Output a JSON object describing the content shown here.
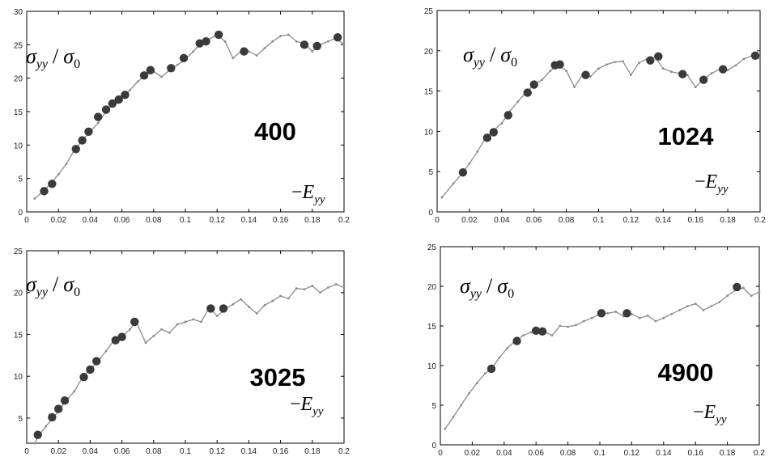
{
  "chart_data": [
    {
      "type": "line",
      "title": "400",
      "ylabel": {
        "num": "σ",
        "num_sub": "yy",
        "slash": "/",
        "den": "σ",
        "den_sub": "0"
      },
      "xlabel": {
        "prefix": "−",
        "main": "E",
        "sub": "yy"
      },
      "xlim": [
        0,
        0.2
      ],
      "ylim": [
        0,
        30
      ],
      "xticks": [
        0,
        0.02,
        0.04,
        0.06,
        0.08,
        0.1,
        0.12,
        0.14,
        0.16,
        0.18,
        0.2
      ],
      "xtick_labels": [
        "0",
        "0.02",
        "0.04",
        "0.06",
        "0.08",
        "0.1",
        "0.12",
        "0.14",
        "0.16",
        "0.18",
        "0.2"
      ],
      "yticks": [
        0,
        5,
        10,
        15,
        20,
        25,
        30
      ],
      "ytick_labels": [
        "0",
        "5",
        "10",
        "15",
        "20",
        "25",
        "30"
      ],
      "grid": false,
      "series": [
        {
          "x": [
            0.005,
            0.01,
            0.015,
            0.02,
            0.025,
            0.03,
            0.035,
            0.04,
            0.045,
            0.05,
            0.055,
            0.06,
            0.065,
            0.07,
            0.075,
            0.08,
            0.085,
            0.09,
            0.095,
            0.1,
            0.105,
            0.11,
            0.115,
            0.12,
            0.125,
            0.13,
            0.135,
            0.14,
            0.145,
            0.15,
            0.155,
            0.16,
            0.165,
            0.17,
            0.175,
            0.18,
            0.185,
            0.19,
            0.195,
            0.2
          ],
          "y": [
            2.0,
            3.0,
            4.2,
            5.6,
            7.2,
            9.2,
            10.7,
            12.0,
            13.3,
            15.0,
            16.2,
            17.0,
            18.2,
            19.5,
            20.5,
            21.0,
            20.2,
            21.2,
            22.0,
            22.8,
            24.0,
            25.2,
            25.8,
            26.5,
            25.5,
            23.0,
            24.0,
            24.0,
            23.4,
            24.5,
            25.5,
            26.3,
            26.5,
            25.5,
            25.2,
            24.0,
            25.0,
            25.5,
            26.0,
            25.0
          ]
        }
      ],
      "markers": [
        {
          "x": 0.011,
          "y": 3.1
        },
        {
          "x": 0.016,
          "y": 4.2
        },
        {
          "x": 0.031,
          "y": 9.4
        },
        {
          "x": 0.035,
          "y": 10.7
        },
        {
          "x": 0.039,
          "y": 12.0
        },
        {
          "x": 0.045,
          "y": 14.2
        },
        {
          "x": 0.05,
          "y": 15.3
        },
        {
          "x": 0.054,
          "y": 16.2
        },
        {
          "x": 0.058,
          "y": 16.8
        },
        {
          "x": 0.062,
          "y": 17.5
        },
        {
          "x": 0.074,
          "y": 20.4
        },
        {
          "x": 0.078,
          "y": 21.2
        },
        {
          "x": 0.091,
          "y": 21.5
        },
        {
          "x": 0.099,
          "y": 23.0
        },
        {
          "x": 0.109,
          "y": 25.2
        },
        {
          "x": 0.113,
          "y": 25.5
        },
        {
          "x": 0.121,
          "y": 26.5
        },
        {
          "x": 0.137,
          "y": 24.0
        },
        {
          "x": 0.175,
          "y": 25.0
        },
        {
          "x": 0.183,
          "y": 24.8
        },
        {
          "x": 0.196,
          "y": 26.1
        }
      ]
    },
    {
      "type": "line",
      "title": "1024",
      "ylabel": {
        "num": "σ",
        "num_sub": "yy",
        "slash": "/",
        "den": "σ",
        "den_sub": "0"
      },
      "xlabel": {
        "prefix": "−",
        "main": "E",
        "sub": "yy"
      },
      "xlim": [
        0,
        0.2
      ],
      "ylim": [
        0,
        25
      ],
      "xticks": [
        0,
        0.02,
        0.04,
        0.06,
        0.08,
        0.1,
        0.12,
        0.14,
        0.16,
        0.18,
        0.2
      ],
      "xtick_labels": [
        "0",
        "0.02",
        "0.04",
        "0.06",
        "0.08",
        "0.1",
        "0.12",
        "0.14",
        "0.16",
        "0.18",
        "0.2"
      ],
      "yticks": [
        0,
        5,
        10,
        15,
        20,
        25
      ],
      "ytick_labels": [
        "0",
        "5",
        "10",
        "15",
        "20",
        "25"
      ],
      "grid": false,
      "series": [
        {
          "x": [
            0.003,
            0.01,
            0.016,
            0.02,
            0.025,
            0.03,
            0.034,
            0.04,
            0.045,
            0.05,
            0.055,
            0.06,
            0.065,
            0.07,
            0.075,
            0.08,
            0.085,
            0.09,
            0.095,
            0.1,
            0.105,
            0.11,
            0.115,
            0.12,
            0.125,
            0.13,
            0.135,
            0.14,
            0.145,
            0.15,
            0.155,
            0.16,
            0.165,
            0.17,
            0.175,
            0.18,
            0.185,
            0.19,
            0.195,
            0.2
          ],
          "y": [
            1.8,
            3.5,
            4.9,
            6.0,
            7.5,
            9.2,
            9.9,
            11.0,
            12.5,
            13.7,
            14.8,
            15.8,
            16.4,
            17.5,
            18.3,
            17.5,
            15.5,
            17.0,
            16.8,
            17.8,
            18.3,
            18.6,
            18.7,
            17.0,
            18.5,
            19.0,
            19.2,
            17.8,
            17.4,
            17.2,
            17.0,
            15.5,
            16.5,
            17.2,
            17.7,
            17.6,
            18.2,
            19.0,
            19.4,
            19.0
          ]
        }
      ],
      "markers": [
        {
          "x": 0.016,
          "y": 4.9
        },
        {
          "x": 0.031,
          "y": 9.2
        },
        {
          "x": 0.035,
          "y": 9.9
        },
        {
          "x": 0.044,
          "y": 12.0
        },
        {
          "x": 0.056,
          "y": 14.8
        },
        {
          "x": 0.06,
          "y": 15.8
        },
        {
          "x": 0.073,
          "y": 18.2
        },
        {
          "x": 0.076,
          "y": 18.3
        },
        {
          "x": 0.092,
          "y": 17.0
        },
        {
          "x": 0.132,
          "y": 18.8
        },
        {
          "x": 0.137,
          "y": 19.3
        },
        {
          "x": 0.152,
          "y": 17.1
        },
        {
          "x": 0.165,
          "y": 16.4
        },
        {
          "x": 0.177,
          "y": 17.7
        },
        {
          "x": 0.197,
          "y": 19.4
        }
      ]
    },
    {
      "type": "line",
      "title": "3025",
      "ylabel": {
        "num": "σ",
        "num_sub": "yy",
        "slash": "/",
        "den": "σ",
        "den_sub": "0"
      },
      "xlabel": {
        "prefix": "−",
        "main": "E",
        "sub": "yy"
      },
      "xlim": [
        0,
        0.2
      ],
      "ylim": [
        2,
        25
      ],
      "xticks": [
        0,
        0.02,
        0.04,
        0.06,
        0.08,
        0.1,
        0.12,
        0.14,
        0.16,
        0.18,
        0.2
      ],
      "xtick_labels": [
        "0",
        "0.02",
        "0.04",
        "0.06",
        "0.08",
        "0.1",
        "0.12",
        "0.14",
        "0.16",
        "0.18",
        "0.2"
      ],
      "yticks": [
        5,
        10,
        15,
        20,
        25
      ],
      "ytick_labels": [
        "5",
        "10",
        "15",
        "20",
        "25"
      ],
      "grid": false,
      "series": [
        {
          "x": [
            0.005,
            0.008,
            0.012,
            0.017,
            0.021,
            0.025,
            0.03,
            0.035,
            0.04,
            0.045,
            0.05,
            0.055,
            0.06,
            0.065,
            0.069,
            0.075,
            0.08,
            0.085,
            0.09,
            0.095,
            0.1,
            0.105,
            0.11,
            0.115,
            0.12,
            0.125,
            0.13,
            0.135,
            0.14,
            0.145,
            0.15,
            0.155,
            0.16,
            0.165,
            0.17,
            0.175,
            0.18,
            0.185,
            0.19,
            0.195,
            0.2
          ],
          "y": [
            2.0,
            3.0,
            4.0,
            5.1,
            6.1,
            7.1,
            8.2,
            9.8,
            10.8,
            11.8,
            13.0,
            14.3,
            14.7,
            15.6,
            16.5,
            14.0,
            14.8,
            15.6,
            15.2,
            16.2,
            16.5,
            16.8,
            16.5,
            18.2,
            17.2,
            18.0,
            18.6,
            19.2,
            18.3,
            17.5,
            18.5,
            19.0,
            19.6,
            19.3,
            20.5,
            20.4,
            20.8,
            20.0,
            20.6,
            21.0,
            20.6
          ]
        }
      ],
      "markers": [
        {
          "x": 0.007,
          "y": 3.0
        },
        {
          "x": 0.016,
          "y": 5.1
        },
        {
          "x": 0.02,
          "y": 6.1
        },
        {
          "x": 0.024,
          "y": 7.1
        },
        {
          "x": 0.036,
          "y": 9.9
        },
        {
          "x": 0.04,
          "y": 10.8
        },
        {
          "x": 0.044,
          "y": 11.8
        },
        {
          "x": 0.056,
          "y": 14.3
        },
        {
          "x": 0.06,
          "y": 14.7
        },
        {
          "x": 0.068,
          "y": 16.5
        },
        {
          "x": 0.116,
          "y": 18.1
        },
        {
          "x": 0.124,
          "y": 18.1
        }
      ]
    },
    {
      "type": "line",
      "title": "4900",
      "ylabel": {
        "num": "σ",
        "num_sub": "yy",
        "slash": "/",
        "den": "σ",
        "den_sub": "0"
      },
      "xlabel": {
        "prefix": "−",
        "main": "E",
        "sub": "yy"
      },
      "xlim": [
        0,
        0.2
      ],
      "ylim": [
        0,
        25
      ],
      "xticks": [
        0,
        0.02,
        0.04,
        0.06,
        0.08,
        0.1,
        0.12,
        0.14,
        0.16,
        0.18,
        0.2
      ],
      "xtick_labels": [
        "0",
        "0.02",
        "0.04",
        "0.06",
        "0.08",
        "0.1",
        "0.12",
        "0.14",
        "0.16",
        "0.18",
        "0.2"
      ],
      "yticks": [
        0,
        5,
        10,
        15,
        20,
        25
      ],
      "ytick_labels": [
        "0",
        "5",
        "10",
        "15",
        "20",
        "25"
      ],
      "grid": false,
      "series": [
        {
          "x": [
            0.003,
            0.008,
            0.013,
            0.018,
            0.023,
            0.028,
            0.032,
            0.037,
            0.042,
            0.047,
            0.052,
            0.057,
            0.061,
            0.065,
            0.07,
            0.075,
            0.08,
            0.085,
            0.09,
            0.095,
            0.1,
            0.105,
            0.11,
            0.115,
            0.12,
            0.125,
            0.13,
            0.135,
            0.14,
            0.145,
            0.15,
            0.155,
            0.16,
            0.165,
            0.17,
            0.175,
            0.18,
            0.185,
            0.19,
            0.195,
            0.2
          ],
          "y": [
            2.0,
            3.5,
            5.0,
            6.5,
            7.8,
            9.0,
            9.6,
            11.0,
            12.2,
            13.1,
            13.8,
            14.2,
            14.5,
            14.3,
            13.8,
            15.0,
            14.9,
            15.1,
            15.6,
            16.0,
            16.5,
            16.6,
            16.8,
            16.2,
            16.5,
            16.0,
            16.3,
            15.6,
            16.0,
            16.5,
            17.0,
            17.5,
            17.8,
            17.0,
            17.5,
            18.0,
            18.8,
            19.5,
            19.8,
            18.8,
            19.3
          ]
        }
      ],
      "markers": [
        {
          "x": 0.032,
          "y": 9.6
        },
        {
          "x": 0.048,
          "y": 13.1
        },
        {
          "x": 0.06,
          "y": 14.4
        },
        {
          "x": 0.064,
          "y": 14.3
        },
        {
          "x": 0.101,
          "y": 16.6
        },
        {
          "x": 0.117,
          "y": 16.6
        },
        {
          "x": 0.186,
          "y": 19.9
        }
      ]
    }
  ]
}
